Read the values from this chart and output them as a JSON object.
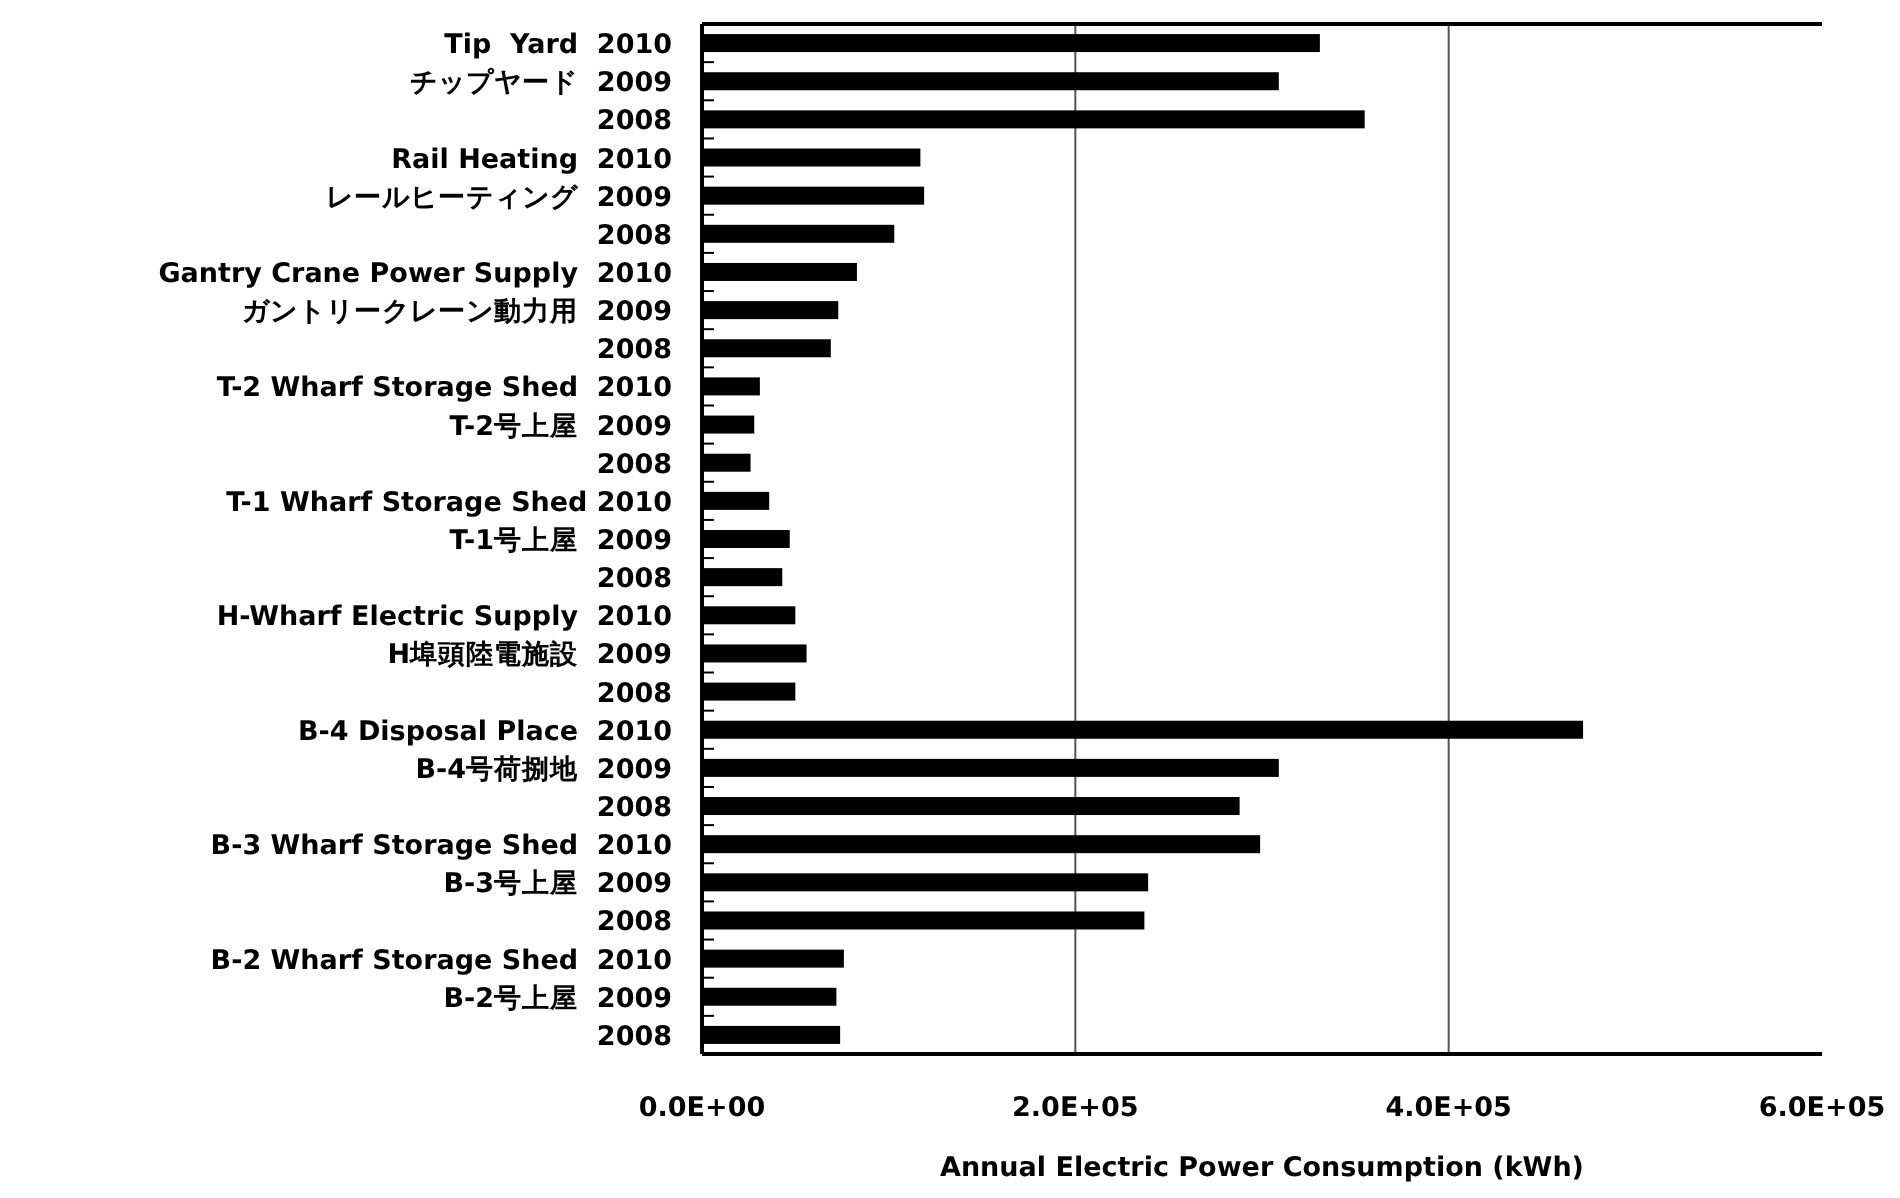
{
  "chart_data": {
    "type": "bar",
    "orientation": "horizontal",
    "xlabel": "Annual Electric Power Consumption (kWh)",
    "categories": [
      "Tip  Yard  2010",
      "チップヤード  2009",
      "2008",
      "Rail Heating  2010",
      "レールヒーティング  2009",
      "2008",
      "Gantry Crane Power Supply  2010",
      "ガントリークレーン動力用  2009",
      "2008",
      "T-2 Wharf Storage Shed  2010",
      "T-2号上屋  2009",
      "2008",
      "T-1 Wharf Storage Shed 2010",
      "T-1号上屋  2009",
      "2008",
      "H-Wharf Electric Supply  2010",
      "H埠頭陸電施設  2009",
      "2008",
      "B-4 Disposal Place  2010",
      "B-4号荷捌地  2009",
      "2008",
      "B-3 Wharf Storage Shed  2010",
      "B-3号上屋  2009",
      "2008",
      "B-2 Wharf Storage Shed  2010",
      "B-2号上屋  2009",
      "2008"
    ],
    "values": [
      331000,
      309000,
      355000,
      117000,
      119000,
      103000,
      83000,
      73000,
      69000,
      31000,
      28000,
      26000,
      36000,
      47000,
      43000,
      50000,
      56000,
      50000,
      472000,
      309000,
      288000,
      299000,
      239000,
      237000,
      76000,
      72000,
      74000
    ],
    "color": "#000000",
    "xlim": [
      0,
      600000
    ],
    "xticks": [
      {
        "value": 0,
        "label": "0.0E+00"
      },
      {
        "value": 200000,
        "label": "2.0E+05"
      },
      {
        "value": 400000,
        "label": "4.0E+05"
      },
      {
        "value": 600000,
        "label": "6.0E+05"
      }
    ],
    "grid": "x"
  }
}
